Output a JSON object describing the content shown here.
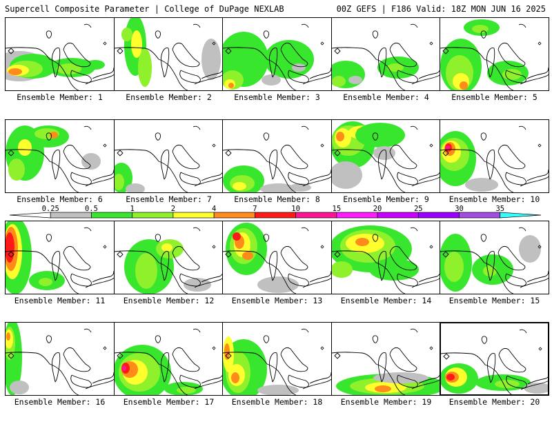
{
  "header": {
    "left": "Supercell Composite Parameter | College of DuPage NEXLAB",
    "right": "00Z GEFS | F186 Valid: 18Z MON JUN 16 2025"
  },
  "legend": {
    "labels": [
      "0.25",
      "0.5",
      "1",
      "2",
      "4",
      "7",
      "10",
      "15",
      "20",
      "25",
      "30",
      "35"
    ],
    "colors": [
      "#c0c0c0",
      "#39e62e",
      "#8ff02c",
      "#ffff2e",
      "#ff8c1a",
      "#ff1a1a",
      "#ff1493",
      "#ff1cff",
      "#c800ff",
      "#9900ff",
      "#a04de0",
      "#33ffff"
    ]
  },
  "members": [
    {
      "label": "Ensemble Member: 1"
    },
    {
      "label": "Ensemble Member: 2"
    },
    {
      "label": "Ensemble Member: 3"
    },
    {
      "label": "Ensemble Member: 4"
    },
    {
      "label": "Ensemble Member: 5"
    },
    {
      "label": "Ensemble Member: 6"
    },
    {
      "label": "Ensemble Member: 7"
    },
    {
      "label": "Ensemble Member: 8"
    },
    {
      "label": "Ensemble Member: 9"
    },
    {
      "label": "Ensemble Member: 10"
    },
    {
      "label": "Ensemble Member: 11"
    },
    {
      "label": "Ensemble Member: 12"
    },
    {
      "label": "Ensemble Member: 13"
    },
    {
      "label": "Ensemble Member: 14"
    },
    {
      "label": "Ensemble Member: 15"
    },
    {
      "label": "Ensemble Member: 16"
    },
    {
      "label": "Ensemble Member: 17"
    },
    {
      "label": "Ensemble Member: 18"
    },
    {
      "label": "Ensemble Member: 19"
    },
    {
      "label": "Ensemble Member: 20"
    }
  ]
}
